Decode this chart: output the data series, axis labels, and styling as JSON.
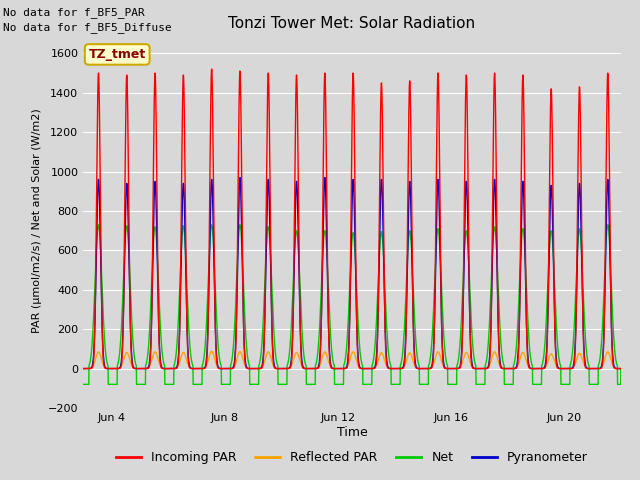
{
  "title": "Tonzi Tower Met: Solar Radiation",
  "xlabel": "Time",
  "ylabel": "PAR (μmol/m2/s) / Net and Solar (W/m2)",
  "ylim": [
    -200,
    1700
  ],
  "yticks": [
    -200,
    0,
    200,
    400,
    600,
    800,
    1000,
    1200,
    1400,
    1600
  ],
  "num_days": 19,
  "annotation_text1": "No data for f_BF5_PAR",
  "annotation_text2": "No data for f_BF5_Diffuse",
  "legend_label_box": "TZ_tmet",
  "legend_entries": [
    "Incoming PAR",
    "Reflected PAR",
    "Net",
    "Pyranometer"
  ],
  "legend_colors": [
    "#ff0000",
    "#ffa500",
    "#00cc00",
    "#0000cc"
  ],
  "line_colors": {
    "incoming_par": "#ff0000",
    "reflected_par": "#ffa500",
    "net": "#00cc00",
    "pyranometer": "#0000cc"
  },
  "background_color": "#d8d8d8",
  "plot_bg_color": "#d8d8d8",
  "grid_color": "#ffffff",
  "xtick_labels": [
    "Jun 4",
    "Jun 8",
    "Jun 12",
    "Jun 16",
    "Jun 20"
  ],
  "xtick_positions": [
    1,
    5,
    9,
    13,
    17
  ],
  "incoming_par_peaks": [
    1500,
    1490,
    1500,
    1490,
    1520,
    1510,
    1500,
    1490,
    1500,
    1500,
    1450,
    1460,
    1500,
    1490,
    1500,
    1490,
    1420,
    1430,
    1500
  ],
  "pyranometer_peaks": [
    960,
    940,
    950,
    940,
    960,
    970,
    960,
    950,
    970,
    960,
    960,
    950,
    960,
    950,
    960,
    950,
    930,
    940,
    960
  ],
  "net_peaks": [
    730,
    725,
    720,
    725,
    730,
    730,
    720,
    700,
    700,
    690,
    695,
    700,
    710,
    700,
    720,
    710,
    700,
    710,
    730
  ],
  "reflected_par_peaks": [
    85,
    82,
    85,
    82,
    88,
    86,
    85,
    82,
    85,
    85,
    80,
    80,
    85,
    82,
    85,
    82,
    75,
    78,
    85
  ],
  "net_night_val": -80,
  "pts_per_day": 288
}
